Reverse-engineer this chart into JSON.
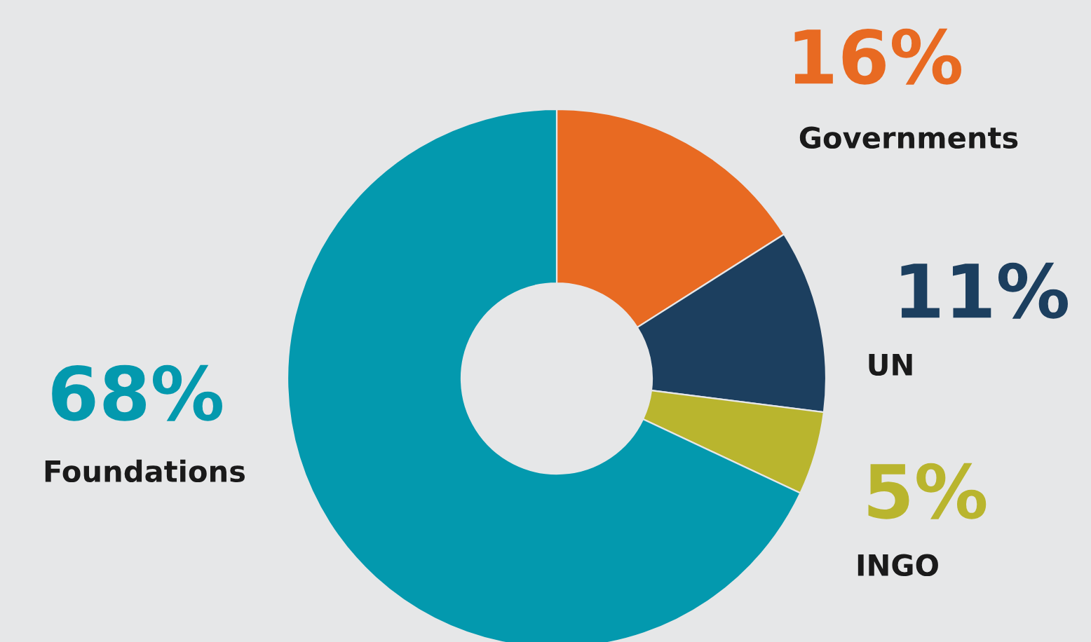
{
  "chart_data": {
    "type": "donut",
    "categories": [
      "Governments",
      "UN",
      "INGO",
      "Foundations"
    ],
    "values": [
      16,
      11,
      5,
      68
    ],
    "value_labels": [
      "16%",
      "11%",
      "5%",
      "68%"
    ],
    "colors": [
      "#e86a22",
      "#1c3f5f",
      "#b9b52e",
      "#0399ae"
    ]
  }
}
